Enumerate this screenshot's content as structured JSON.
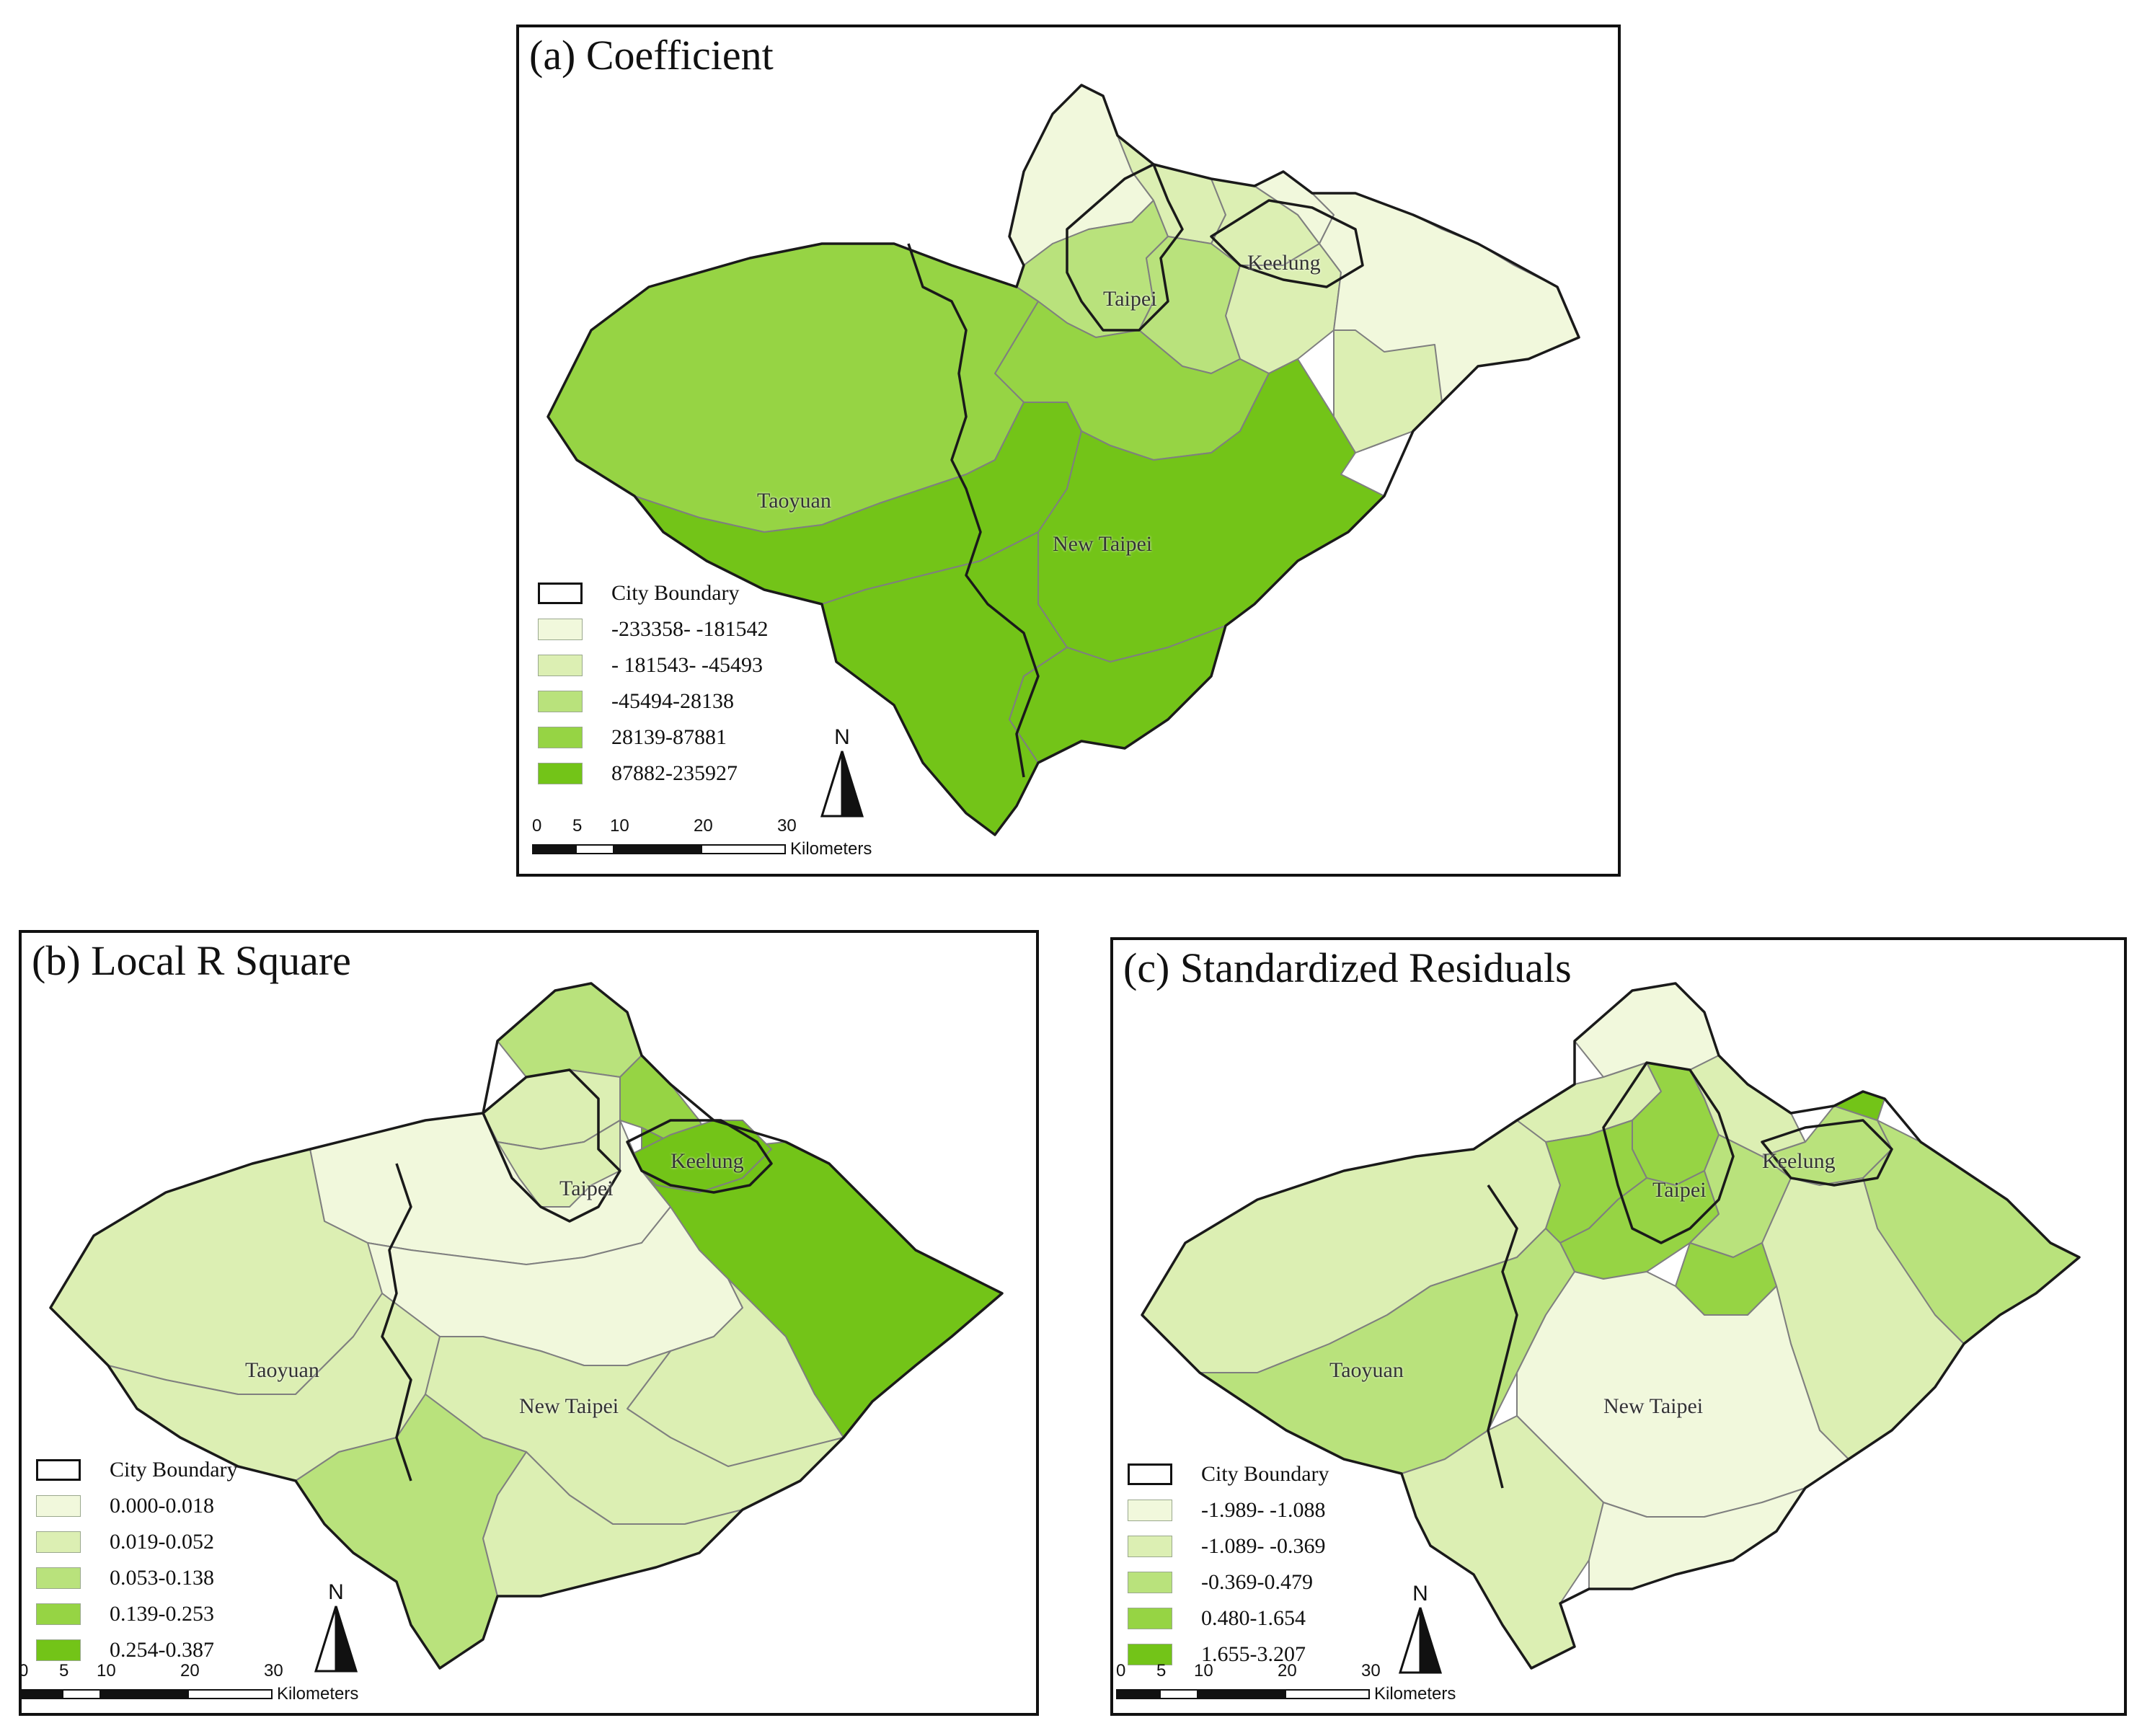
{
  "panels": [
    {
      "title": "(a) Coefficient",
      "cities": [
        "Keelung",
        "Taipei",
        "Taoyuan",
        "New Taipei"
      ],
      "legend": {
        "boundary_label": "City Boundary",
        "classes": [
          {
            "label": "-233358- -181542",
            "color": "#f1f8dc"
          },
          {
            "label": "- 181543- -45493",
            "color": "#dcefb3"
          },
          {
            "label": "-45494-28138",
            "color": "#b9e27c"
          },
          {
            "label": "28139-87881",
            "color": "#96d444"
          },
          {
            "label": "87882-235927",
            "color": "#73c418"
          }
        ]
      },
      "scale": {
        "ticks": [
          "0",
          "5",
          "10",
          "20",
          "30"
        ],
        "unit": "Kilometers"
      },
      "north": "N"
    },
    {
      "title": "(b) Local R Square",
      "cities": [
        "Keelung",
        "Taipei",
        "Taoyuan",
        "New Taipei"
      ],
      "legend": {
        "boundary_label": "City Boundary",
        "classes": [
          {
            "label": "0.000-0.018",
            "color": "#f1f8dc"
          },
          {
            "label": "0.019-0.052",
            "color": "#dcefb3"
          },
          {
            "label": "0.053-0.138",
            "color": "#b9e27c"
          },
          {
            "label": "0.139-0.253",
            "color": "#96d444"
          },
          {
            "label": "0.254-0.387",
            "color": "#73c418"
          }
        ]
      },
      "scale": {
        "ticks": [
          "0",
          "5",
          "10",
          "20",
          "30"
        ],
        "unit": "Kilometers"
      },
      "north": "N"
    },
    {
      "title": "(c) Standardized Residuals",
      "cities": [
        "Keelung",
        "Taipei",
        "Taoyuan",
        "New Taipei"
      ],
      "legend": {
        "boundary_label": "City Boundary",
        "classes": [
          {
            "label": "-1.989- -1.088",
            "color": "#f1f8dc"
          },
          {
            "label": "-1.089- -0.369",
            "color": "#dcefb3"
          },
          {
            "label": "-0.369-0.479",
            "color": "#b9e27c"
          },
          {
            "label": "0.480-1.654",
            "color": "#96d444"
          },
          {
            "label": "1.655-3.207",
            "color": "#73c418"
          }
        ]
      },
      "scale": {
        "ticks": [
          "0",
          "5",
          "10",
          "20",
          "30"
        ],
        "unit": "Kilometers"
      },
      "north": "N"
    }
  ]
}
